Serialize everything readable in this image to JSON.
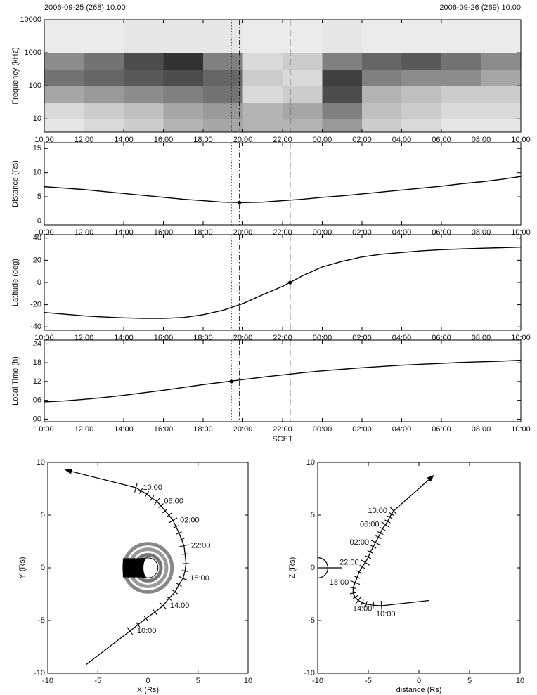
{
  "chart_data": [
    {
      "type": "heatmap",
      "annotations": [
        "2006-09-25 (268) 10:00",
        "2006-09-26 (269) 10:00"
      ],
      "ylabel": "Frequency (kHz)",
      "log_y": true,
      "ylim": [
        4,
        10000
      ],
      "yticks": [
        10,
        100,
        1000,
        10000
      ],
      "xlim": [
        0,
        24
      ],
      "xticks": [
        {
          "value": 0,
          "label": "10:00"
        },
        {
          "value": 2,
          "label": "12:00"
        },
        {
          "value": 4,
          "label": "14:00"
        },
        {
          "value": 6,
          "label": "16:00"
        },
        {
          "value": 8,
          "label": "18:00"
        },
        {
          "value": 10,
          "label": "20:00"
        },
        {
          "value": 12,
          "label": "22:00"
        },
        {
          "value": 14,
          "label": "00:00"
        },
        {
          "value": 16,
          "label": "02:00"
        },
        {
          "value": 18,
          "label": "04:00"
        },
        {
          "value": 20,
          "label": "06:00"
        },
        {
          "value": 22,
          "label": "08:00"
        },
        {
          "value": 24,
          "label": "10:00"
        }
      ],
      "time_bins": [
        0,
        2,
        4,
        6,
        8,
        10,
        12,
        14,
        16,
        18,
        20,
        22,
        24
      ],
      "freq_bins": [
        4,
        10,
        30,
        100,
        300,
        1000,
        10000
      ],
      "intensity": [
        [
          0.1,
          0.15,
          0.2,
          0.3,
          0.35,
          0.3,
          0.3,
          0.4,
          0.2,
          0.15,
          0.1,
          0.1
        ],
        [
          0.15,
          0.2,
          0.25,
          0.35,
          0.4,
          0.3,
          0.35,
          0.5,
          0.25,
          0.2,
          0.15,
          0.15
        ],
        [
          0.35,
          0.4,
          0.45,
          0.5,
          0.55,
          0.15,
          0.2,
          0.7,
          0.3,
          0.25,
          0.2,
          0.2
        ],
        [
          0.55,
          0.6,
          0.65,
          0.7,
          0.6,
          0.2,
          0.15,
          0.75,
          0.5,
          0.45,
          0.45,
          0.35
        ],
        [
          0.45,
          0.55,
          0.7,
          0.8,
          0.5,
          0.15,
          0.2,
          0.5,
          0.6,
          0.65,
          0.55,
          0.45
        ],
        [
          0.08,
          0.08,
          0.1,
          0.1,
          0.1,
          0.08,
          0.08,
          0.1,
          0.08,
          0.08,
          0.08,
          0.08
        ]
      ],
      "vlines": [
        {
          "value": 9.42,
          "style": "dotted"
        },
        {
          "value": 9.83,
          "style": "dashdot"
        },
        {
          "value": 12.38,
          "style": "dashed"
        }
      ]
    },
    {
      "type": "line",
      "ylabel": "Distance (Rs)",
      "ylim": [
        -0.8,
        16.2
      ],
      "yticks": [
        0,
        5,
        10,
        15
      ],
      "color": "#000000",
      "xlim": [
        0,
        24
      ],
      "xticks": [
        {
          "value": 0,
          "label": "10:00"
        },
        {
          "value": 2,
          "label": "12:00"
        },
        {
          "value": 4,
          "label": "14:00"
        },
        {
          "value": 6,
          "label": "16:00"
        },
        {
          "value": 8,
          "label": "18:00"
        },
        {
          "value": 10,
          "label": "20:00"
        },
        {
          "value": 12,
          "label": "22:00"
        },
        {
          "value": 14,
          "label": "00:00"
        },
        {
          "value": 16,
          "label": "02:00"
        },
        {
          "value": 18,
          "label": "04:00"
        },
        {
          "value": 20,
          "label": "06:00"
        },
        {
          "value": 22,
          "label": "08:00"
        },
        {
          "value": 24,
          "label": "10:00"
        }
      ],
      "x": [
        0,
        1,
        2,
        3,
        4,
        5,
        6,
        7,
        8,
        9,
        10,
        11,
        12,
        13,
        14,
        15,
        16,
        17,
        18,
        19,
        20,
        21,
        22,
        23,
        24
      ],
      "values": [
        7.1,
        6.8,
        6.5,
        6.1,
        5.7,
        5.3,
        4.9,
        4.5,
        4.2,
        3.9,
        3.8,
        3.9,
        4.2,
        4.5,
        4.9,
        5.2,
        5.6,
        6.0,
        6.4,
        6.8,
        7.2,
        7.7,
        8.1,
        8.6,
        9.2
      ],
      "marker": {
        "x": 9.83,
        "y": 3.8
      },
      "vlines": [
        {
          "value": 9.42,
          "style": "dotted"
        },
        {
          "value": 9.83,
          "style": "dashdot"
        },
        {
          "value": 12.38,
          "style": "dashed"
        }
      ]
    },
    {
      "type": "line",
      "ylabel": "Latitude (deg)",
      "ylim": [
        -43,
        43
      ],
      "yticks": [
        -40,
        -20,
        0,
        20,
        40
      ],
      "color": "#000000",
      "xlim": [
        0,
        24
      ],
      "xticks": [
        {
          "value": 0,
          "label": "10:00"
        },
        {
          "value": 2,
          "label": "12:00"
        },
        {
          "value": 4,
          "label": "14:00"
        },
        {
          "value": 6,
          "label": "16:00"
        },
        {
          "value": 8,
          "label": "18:00"
        },
        {
          "value": 10,
          "label": "20:00"
        },
        {
          "value": 12,
          "label": "22:00"
        },
        {
          "value": 14,
          "label": "00:00"
        },
        {
          "value": 16,
          "label": "02:00"
        },
        {
          "value": 18,
          "label": "04:00"
        },
        {
          "value": 20,
          "label": "06:00"
        },
        {
          "value": 22,
          "label": "08:00"
        },
        {
          "value": 24,
          "label": "10:00"
        }
      ],
      "x": [
        0,
        1,
        2,
        3,
        4,
        5,
        6,
        7,
        8,
        9,
        10,
        11,
        12,
        13,
        14,
        15,
        16,
        17,
        18,
        19,
        20,
        21,
        22,
        23,
        24
      ],
      "values": [
        -27,
        -28.5,
        -30,
        -31,
        -31.8,
        -32.3,
        -32.3,
        -31.5,
        -29,
        -25,
        -19,
        -11,
        -3.5,
        6,
        14,
        19,
        23,
        25.5,
        27,
        28.5,
        29.5,
        30.2,
        30.8,
        31.3,
        31.8
      ],
      "marker": {
        "x": 12.38,
        "y": 0
      },
      "vlines": [
        {
          "value": 9.42,
          "style": "dotted"
        },
        {
          "value": 9.83,
          "style": "dashdot"
        },
        {
          "value": 12.38,
          "style": "dashed"
        }
      ]
    },
    {
      "type": "line",
      "ylabel": "Local Time (h)",
      "xlabel": "SCET",
      "ylim": [
        -0.8,
        25.2
      ],
      "yticks": [
        {
          "value": 0,
          "label": "00"
        },
        {
          "value": 6,
          "label": "06"
        },
        {
          "value": 12,
          "label": "12"
        },
        {
          "value": 18,
          "label": "18"
        },
        {
          "value": 24,
          "label": "24"
        }
      ],
      "color": "#000000",
      "xlim": [
        0,
        24
      ],
      "xticks": [
        {
          "value": 0,
          "label": "10:00"
        },
        {
          "value": 2,
          "label": "12:00"
        },
        {
          "value": 4,
          "label": "14:00"
        },
        {
          "value": 6,
          "label": "16:00"
        },
        {
          "value": 8,
          "label": "18:00"
        },
        {
          "value": 10,
          "label": "20:00"
        },
        {
          "value": 12,
          "label": "22:00"
        },
        {
          "value": 14,
          "label": "00:00"
        },
        {
          "value": 16,
          "label": "02:00"
        },
        {
          "value": 18,
          "label": "04:00"
        },
        {
          "value": 20,
          "label": "06:00"
        },
        {
          "value": 22,
          "label": "08:00"
        },
        {
          "value": 24,
          "label": "10:00"
        }
      ],
      "x": [
        0,
        1,
        2,
        3,
        4,
        5,
        6,
        7,
        8,
        9,
        10,
        11,
        12,
        13,
        14,
        15,
        16,
        17,
        18,
        19,
        20,
        21,
        22,
        23,
        24
      ],
      "values": [
        5.5,
        5.8,
        6.3,
        6.9,
        7.6,
        8.4,
        9.2,
        10.1,
        11.0,
        11.8,
        12.6,
        13.4,
        14.1,
        14.8,
        15.4,
        15.9,
        16.4,
        16.8,
        17.2,
        17.5,
        17.8,
        18.1,
        18.3,
        18.5,
        18.8
      ],
      "marker": {
        "x": 9.42,
        "y": 12
      },
      "vlines": [
        {
          "value": 9.42,
          "style": "dotted"
        },
        {
          "value": 9.83,
          "style": "dashdot"
        },
        {
          "value": 12.38,
          "style": "dashed"
        }
      ]
    },
    {
      "type": "trajectory",
      "xlabel": "X (Rs)",
      "ylabel": "Y (Rs)",
      "xlim": [
        -10,
        10
      ],
      "ylim": [
        -10,
        10
      ],
      "xticks": [
        -10,
        -5,
        0,
        5,
        10
      ],
      "yticks": [
        -10,
        -5,
        0,
        5,
        10
      ],
      "planet": "equatorial",
      "label_side": "right",
      "x": [
        -6.2,
        -1.8,
        -1.0,
        -0.2,
        0.7,
        1.5,
        2.1,
        2.7,
        3.1,
        3.5,
        3.7,
        3.8,
        3.7,
        3.6,
        3.35,
        3.1,
        2.8,
        2.5,
        2.1,
        1.7,
        1.3,
        0.9,
        0.4,
        -0.1,
        -0.7,
        -1.2,
        -8.3
      ],
      "y": [
        -9.2,
        -6.0,
        -5.4,
        -4.8,
        -4.2,
        -3.6,
        -2.9,
        -2.3,
        -1.6,
        -1.0,
        -0.3,
        0.4,
        1.3,
        2.1,
        2.7,
        3.3,
        3.9,
        4.5,
        5.0,
        5.4,
        5.9,
        6.3,
        6.6,
        7.0,
        7.3,
        7.6,
        9.3
      ],
      "labels": [
        null,
        "10:00",
        null,
        null,
        null,
        "14:00",
        null,
        null,
        null,
        "18:00",
        null,
        null,
        null,
        "22:00",
        null,
        null,
        null,
        "02:00",
        null,
        null,
        null,
        "06:00",
        null,
        null,
        null,
        "10:00",
        null
      ]
    },
    {
      "type": "trajectory",
      "xlabel": "distance (Rs)",
      "ylabel": "Z (Rs)",
      "xlim": [
        -10,
        10
      ],
      "ylim": [
        -10,
        10
      ],
      "xticks": [
        -10,
        -5,
        0,
        5,
        10
      ],
      "yticks": [
        -10,
        -5,
        0,
        5,
        10
      ],
      "planet": "meridional",
      "label_side": "left",
      "x": [
        1.0,
        -3.7,
        -4.5,
        -5.2,
        -5.6,
        -6.0,
        -6.3,
        -6.5,
        -6.5,
        -6.3,
        -6.1,
        -5.9,
        -5.6,
        -5.3,
        -5.0,
        -4.8,
        -4.5,
        -4.3,
        -4.0,
        -3.8,
        -3.6,
        -3.3,
        -3.1,
        -2.9,
        -2.7,
        -2.5,
        1.5
      ],
      "y": [
        -3.1,
        -3.6,
        -3.55,
        -3.45,
        -3.3,
        -3.1,
        -2.8,
        -2.4,
        -1.9,
        -1.4,
        -0.9,
        -0.4,
        0.1,
        0.5,
        1.0,
        1.5,
        2.0,
        2.4,
        2.9,
        3.3,
        3.7,
        4.1,
        4.4,
        4.8,
        5.1,
        5.4,
        8.8
      ],
      "labels": [
        null,
        "10:00",
        null,
        null,
        null,
        "14:00",
        null,
        null,
        null,
        "18:00",
        null,
        null,
        null,
        "22:00",
        null,
        null,
        null,
        "02:00",
        null,
        null,
        null,
        "06:00",
        null,
        null,
        null,
        "10:00",
        null
      ]
    }
  ]
}
